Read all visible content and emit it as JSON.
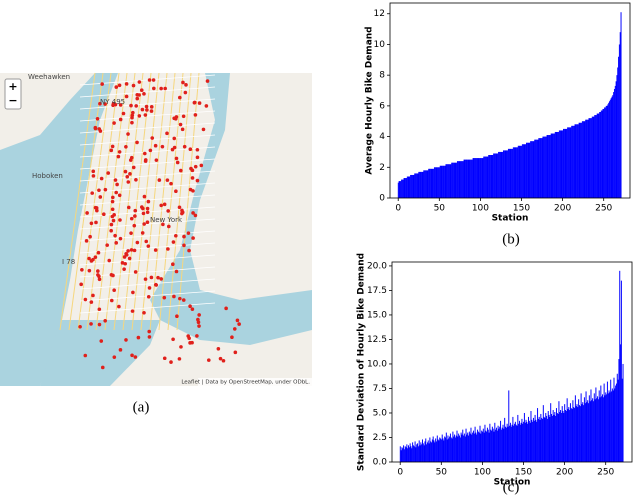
{
  "map": {
    "zoom_in": "+",
    "zoom_out": "−",
    "places": [
      "Weehawken",
      "Hoboken",
      "New York"
    ],
    "roads": [
      "NY 495",
      "I 78"
    ],
    "attribution": "Leaflet | Data by OpenStreetMap, under ODbL."
  },
  "panel_labels": [
    "(a)",
    "(b)",
    "(c)"
  ],
  "chart_data": [
    {
      "type": "bar",
      "xlabel": "Station",
      "ylabel": "Average Hourly Bike Demand",
      "color": "#0000ff",
      "xlim": [
        -10,
        282
      ],
      "xticks": [
        0,
        50,
        100,
        150,
        200,
        250
      ],
      "ylim": [
        0,
        12.7
      ],
      "yticks": [
        0,
        2,
        4,
        6,
        8,
        10,
        12
      ],
      "values": [
        1.0,
        1.1,
        1.1,
        1.1,
        1.2,
        1.2,
        1.2,
        1.3,
        1.3,
        1.3,
        1.3,
        1.4,
        1.4,
        1.4,
        1.4,
        1.5,
        1.5,
        1.5,
        1.5,
        1.5,
        1.6,
        1.6,
        1.6,
        1.6,
        1.6,
        1.7,
        1.7,
        1.7,
        1.7,
        1.7,
        1.7,
        1.8,
        1.8,
        1.8,
        1.8,
        1.8,
        1.8,
        1.9,
        1.9,
        1.9,
        1.9,
        1.9,
        1.9,
        1.9,
        2.0,
        2.0,
        2.0,
        2.0,
        2.0,
        2.0,
        2.0,
        2.1,
        2.1,
        2.1,
        2.1,
        2.1,
        2.1,
        2.1,
        2.2,
        2.2,
        2.2,
        2.2,
        2.2,
        2.2,
        2.2,
        2.3,
        2.3,
        2.3,
        2.3,
        2.3,
        2.3,
        2.3,
        2.4,
        2.4,
        2.4,
        2.4,
        2.4,
        2.4,
        2.4,
        2.4,
        2.5,
        2.5,
        2.5,
        2.5,
        2.5,
        2.5,
        2.5,
        2.5,
        2.5,
        2.5,
        2.5,
        2.6,
        2.6,
        2.6,
        2.6,
        2.6,
        2.6,
        2.6,
        2.6,
        2.6,
        2.6,
        2.6,
        2.6,
        2.6,
        2.7,
        2.7,
        2.7,
        2.7,
        2.7,
        2.7,
        2.8,
        2.8,
        2.8,
        2.8,
        2.8,
        2.8,
        2.9,
        2.9,
        2.9,
        2.9,
        2.9,
        2.9,
        3.0,
        3.0,
        3.0,
        3.0,
        3.0,
        3.0,
        3.1,
        3.1,
        3.1,
        3.1,
        3.1,
        3.1,
        3.2,
        3.2,
        3.2,
        3.2,
        3.2,
        3.2,
        3.3,
        3.3,
        3.3,
        3.3,
        3.3,
        3.3,
        3.4,
        3.4,
        3.4,
        3.4,
        3.4,
        3.5,
        3.5,
        3.5,
        3.5,
        3.5,
        3.6,
        3.6,
        3.6,
        3.6,
        3.6,
        3.7,
        3.7,
        3.7,
        3.7,
        3.7,
        3.8,
        3.8,
        3.8,
        3.8,
        3.8,
        3.9,
        3.9,
        3.9,
        3.9,
        3.9,
        4.0,
        4.0,
        4.0,
        4.0,
        4.0,
        4.1,
        4.1,
        4.1,
        4.1,
        4.1,
        4.2,
        4.2,
        4.2,
        4.2,
        4.2,
        4.3,
        4.3,
        4.3,
        4.3,
        4.3,
        4.4,
        4.4,
        4.4,
        4.4,
        4.4,
        4.5,
        4.5,
        4.5,
        4.5,
        4.5,
        4.6,
        4.6,
        4.6,
        4.6,
        4.6,
        4.7,
        4.7,
        4.7,
        4.7,
        4.8,
        4.8,
        4.8,
        4.8,
        4.8,
        4.9,
        4.9,
        4.9,
        4.9,
        5.0,
        5.0,
        5.0,
        5.0,
        5.1,
        5.1,
        5.1,
        5.1,
        5.2,
        5.2,
        5.2,
        5.2,
        5.3,
        5.3,
        5.3,
        5.4,
        5.4,
        5.4,
        5.5,
        5.5,
        5.5,
        5.6,
        5.6,
        5.7,
        5.7,
        5.8,
        5.8,
        5.9,
        5.9,
        6.0,
        6.0,
        6.1,
        6.2,
        6.3,
        6.4,
        6.5,
        6.6,
        6.7,
        6.9,
        7.1,
        7.3,
        7.6,
        8.0,
        8.5,
        9.2,
        10.0,
        10.8,
        12.1
      ]
    },
    {
      "type": "bar",
      "xlabel": "Station",
      "ylabel": "Standard Deviation of Hourly Bike Demand",
      "color": "#0000ff",
      "xlim": [
        -10,
        282
      ],
      "xticks": [
        0,
        50,
        100,
        150,
        200,
        250
      ],
      "ylim": [
        0,
        20.4
      ],
      "yticks": [
        {
          "value": 0,
          "label": "0.0"
        },
        {
          "value": 2.5,
          "label": "2.5"
        },
        {
          "value": 5,
          "label": "5.0"
        },
        {
          "value": 7.5,
          "label": "7.5"
        },
        {
          "value": 10,
          "label": "10.0"
        },
        {
          "value": 12.5,
          "label": "12.5"
        },
        {
          "value": 15,
          "label": "15.0"
        },
        {
          "value": 17.5,
          "label": "17.5"
        },
        {
          "value": 20,
          "label": "20.0"
        }
      ],
      "values": [
        1.6,
        1.2,
        1.5,
        1.4,
        1.7,
        1.3,
        1.6,
        1.5,
        1.8,
        1.4,
        1.7,
        1.5,
        1.9,
        1.6,
        1.4,
        2.0,
        1.7,
        1.6,
        2.1,
        1.5,
        1.8,
        1.9,
        1.6,
        2.2,
        1.7,
        2.0,
        1.8,
        2.3,
        1.9,
        1.7,
        2.1,
        2.4,
        1.8,
        2.0,
        2.2,
        1.9,
        2.5,
        2.1,
        2.0,
        2.3,
        2.6,
        2.2,
        2.0,
        2.4,
        2.1,
        2.7,
        2.3,
        2.2,
        2.5,
        2.4,
        2.3,
        2.8,
        2.4,
        2.2,
        2.6,
        2.5,
        3.0,
        2.3,
        2.7,
        2.4,
        2.6,
        2.9,
        2.5,
        2.4,
        3.1,
        2.6,
        2.8,
        2.5,
        2.7,
        3.2,
        2.6,
        2.9,
        2.7,
        2.5,
        3.0,
        2.8,
        3.3,
        2.7,
        2.9,
        2.6,
        3.4,
        2.8,
        3.0,
        2.7,
        3.1,
        2.9,
        3.5,
        2.8,
        3.0,
        3.2,
        2.9,
        3.6,
        3.0,
        2.8,
        3.3,
        3.1,
        3.0,
        3.7,
        2.9,
        3.2,
        3.1,
        3.4,
        3.0,
        3.8,
        3.2,
        3.1,
        3.5,
        3.3,
        3.0,
        3.9,
        3.3,
        3.2,
        3.6,
        3.4,
        3.1,
        4.0,
        3.3,
        3.5,
        3.2,
        3.7,
        3.4,
        3.6,
        4.2,
        3.3,
        3.5,
        3.8,
        3.4,
        4.5,
        3.6,
        3.5,
        3.9,
        3.6,
        7.3,
        3.7,
        4.0,
        3.6,
        3.8,
        4.6,
        3.7,
        3.9,
        4.1,
        3.8,
        3.7,
        4.8,
        3.9,
        4.2,
        3.8,
        4.0,
        4.4,
        3.9,
        4.1,
        5.0,
        4.0,
        4.3,
        4.1,
        3.9,
        4.6,
        4.2,
        4.0,
        5.2,
        4.3,
        4.1,
        4.5,
        4.2,
        4.8,
        4.3,
        4.1,
        5.5,
        4.4,
        4.6,
        4.3,
        4.9,
        4.5,
        4.4,
        5.8,
        4.6,
        4.5,
        5.0,
        4.7,
        4.4,
        5.2,
        4.8,
        4.6,
        6.0,
        4.9,
        4.7,
        5.3,
        4.8,
        5.1,
        4.7,
        5.5,
        5.0,
        4.9,
        6.2,
        5.1,
        5.3,
        5.0,
        5.7,
        5.2,
        5.0,
        5.9,
        5.3,
        5.2,
        6.5,
        5.4,
        5.6,
        5.3,
        6.0,
        5.5,
        5.4,
        6.3,
        5.6,
        5.5,
        6.8,
        5.7,
        5.9,
        5.6,
        6.4,
        5.8,
        5.7,
        7.0,
        5.9,
        6.1,
        5.8,
        6.6,
        6.0,
        7.2,
        6.1,
        6.3,
        6.0,
        6.8,
        6.2,
        7.4,
        6.3,
        6.5,
        6.2,
        7.0,
        6.4,
        7.6,
        6.5,
        6.7,
        6.4,
        7.3,
        6.6,
        7.8,
        6.7,
        6.9,
        6.6,
        8.0,
        6.8,
        7.1,
        6.9,
        8.2,
        7.0,
        7.3,
        7.1,
        8.4,
        7.2,
        7.5,
        7.3,
        8.6,
        7.5,
        7.8,
        8.0,
        9.0,
        8.4,
        10.5,
        19.5,
        12.0,
        18.5,
        8.5,
        10.0
      ]
    }
  ]
}
